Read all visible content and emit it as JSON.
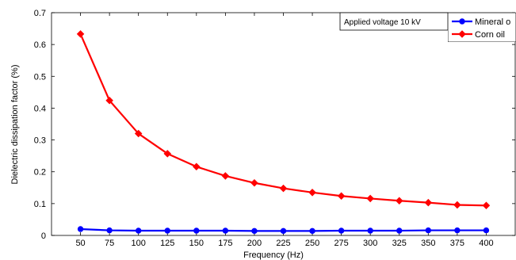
{
  "chart_data": {
    "type": "line",
    "title": "",
    "xlabel": "Frequency (Hz)",
    "ylabel": "Dielectric dissipation factor (%)",
    "x": [
      50,
      75,
      100,
      125,
      150,
      175,
      200,
      225,
      250,
      275,
      300,
      325,
      350,
      375,
      400
    ],
    "xlim": [
      25,
      425
    ],
    "ylim": [
      0,
      0.7
    ],
    "yticks": [
      0,
      0.1,
      0.2,
      0.3,
      0.4,
      0.5,
      0.6,
      0.7
    ],
    "ytick_labels": [
      "0",
      "0.1",
      "0.2",
      "0.3",
      "0.4",
      "0.5",
      "0.6",
      "0.7"
    ],
    "grid": false,
    "legend_position": "top-right",
    "annotation": "Applied voltage 10 kV",
    "series": [
      {
        "name": "Mineral oil",
        "legend_label": "Mineral o",
        "color": "#0000ff",
        "marker": "circle",
        "values": [
          0.02,
          0.016,
          0.015,
          0.015,
          0.015,
          0.015,
          0.014,
          0.014,
          0.014,
          0.015,
          0.015,
          0.015,
          0.016,
          0.016,
          0.016
        ]
      },
      {
        "name": "Corn oil",
        "legend_label": "Corn oil",
        "color": "#ff0000",
        "marker": "diamond",
        "values": [
          0.633,
          0.424,
          0.32,
          0.257,
          0.216,
          0.187,
          0.165,
          0.148,
          0.135,
          0.124,
          0.116,
          0.109,
          0.103,
          0.096,
          0.094
        ]
      }
    ]
  }
}
